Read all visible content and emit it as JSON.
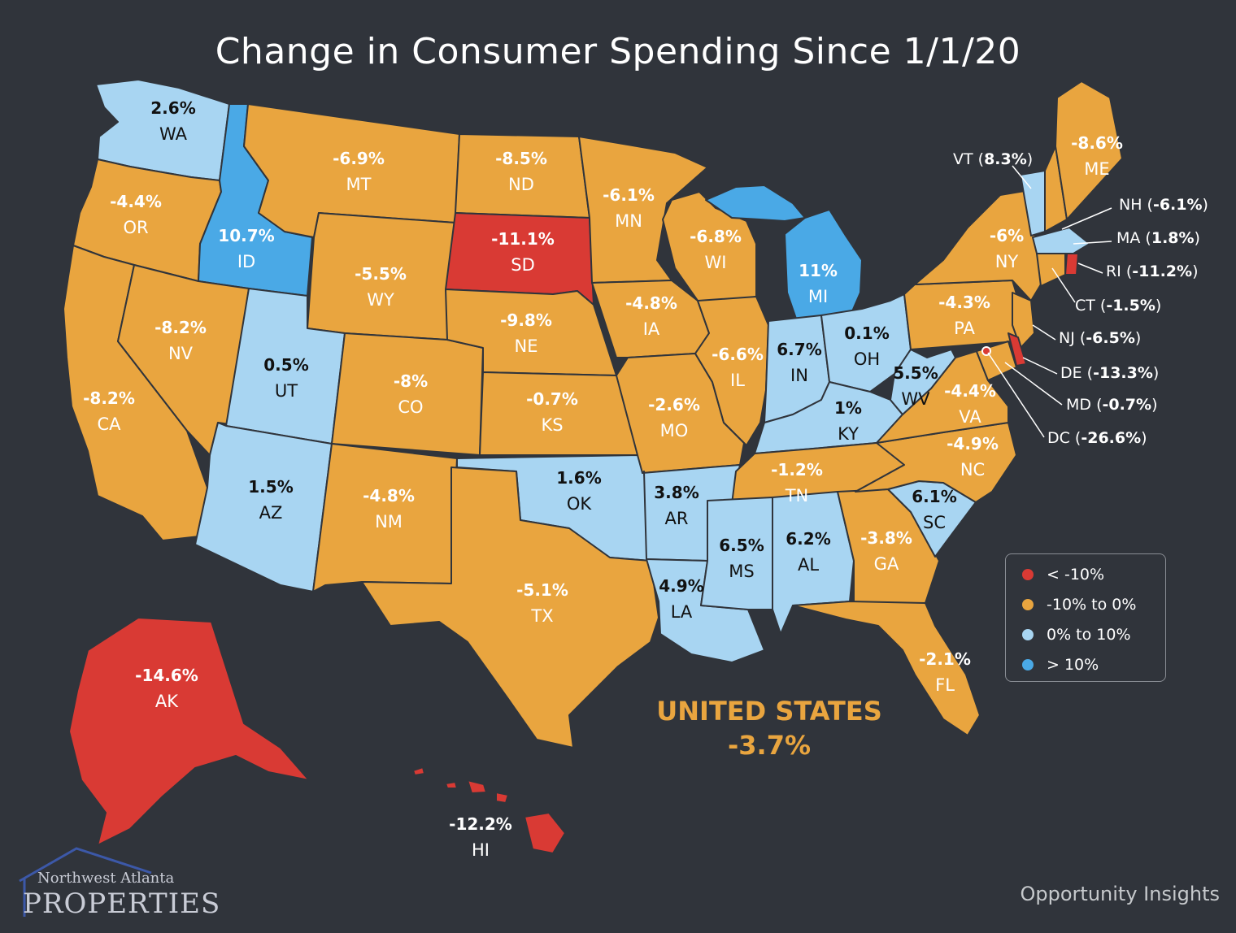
{
  "title": "Change in Consumer Spending Since 1/1/20",
  "legend": [
    {
      "label": "< -10%",
      "color": "#d93a34"
    },
    {
      "label": "-10% to 0%",
      "color": "#e9a53f"
    },
    {
      "label": "0% to 10%",
      "color": "#a8d5f2"
    },
    {
      "label": "> 10%",
      "color": "#4aa9e6"
    }
  ],
  "united_states": {
    "name": "UNITED STATES",
    "value": "-3.7%"
  },
  "source": "Opportunity Insights",
  "logo": {
    "top": "Northwest Atlanta",
    "bottom": "PROPERTIES"
  },
  "states": [
    {
      "abbr": "WA",
      "value": "2.6%"
    },
    {
      "abbr": "OR",
      "value": "-4.4%"
    },
    {
      "abbr": "CA",
      "value": "-8.2%"
    },
    {
      "abbr": "ID",
      "value": "10.7%"
    },
    {
      "abbr": "NV",
      "value": "-8.2%"
    },
    {
      "abbr": "MT",
      "value": "-6.9%"
    },
    {
      "abbr": "WY",
      "value": "-5.5%"
    },
    {
      "abbr": "UT",
      "value": "0.5%"
    },
    {
      "abbr": "AZ",
      "value": "1.5%"
    },
    {
      "abbr": "CO",
      "value": "-8%"
    },
    {
      "abbr": "NM",
      "value": "-4.8%"
    },
    {
      "abbr": "ND",
      "value": "-8.5%"
    },
    {
      "abbr": "SD",
      "value": "-11.1%"
    },
    {
      "abbr": "NE",
      "value": "-9.8%"
    },
    {
      "abbr": "KS",
      "value": "-0.7%"
    },
    {
      "abbr": "OK",
      "value": "1.6%"
    },
    {
      "abbr": "TX",
      "value": "-5.1%"
    },
    {
      "abbr": "MN",
      "value": "-6.1%"
    },
    {
      "abbr": "IA",
      "value": "-4.8%"
    },
    {
      "abbr": "MO",
      "value": "-2.6%"
    },
    {
      "abbr": "AR",
      "value": "3.8%"
    },
    {
      "abbr": "LA",
      "value": "4.9%"
    },
    {
      "abbr": "WI",
      "value": "-6.8%"
    },
    {
      "abbr": "IL",
      "value": "-6.6%"
    },
    {
      "abbr": "MI",
      "value": "11%"
    },
    {
      "abbr": "IN",
      "value": "6.7%"
    },
    {
      "abbr": "OH",
      "value": "0.1%"
    },
    {
      "abbr": "KY",
      "value": "1%"
    },
    {
      "abbr": "TN",
      "value": "-1.2%"
    },
    {
      "abbr": "MS",
      "value": "6.5%"
    },
    {
      "abbr": "AL",
      "value": "6.2%"
    },
    {
      "abbr": "GA",
      "value": "-3.8%"
    },
    {
      "abbr": "FL",
      "value": "-2.1%"
    },
    {
      "abbr": "SC",
      "value": "6.1%"
    },
    {
      "abbr": "NC",
      "value": "-4.9%"
    },
    {
      "abbr": "VA",
      "value": "-4.4%"
    },
    {
      "abbr": "WV",
      "value": "5.5%"
    },
    {
      "abbr": "PA",
      "value": "-4.3%"
    },
    {
      "abbr": "NY",
      "value": "-6%"
    },
    {
      "abbr": "ME",
      "value": "-8.6%"
    },
    {
      "abbr": "AK",
      "value": "-14.6%"
    },
    {
      "abbr": "HI",
      "value": "-12.2%"
    }
  ],
  "callouts": [
    {
      "abbr": "VT",
      "value": "8.3%"
    },
    {
      "abbr": "NH",
      "value": "-6.1%"
    },
    {
      "abbr": "MA",
      "value": "1.8%"
    },
    {
      "abbr": "RI",
      "value": "-11.2%"
    },
    {
      "abbr": "CT",
      "value": "-1.5%"
    },
    {
      "abbr": "NJ",
      "value": "-6.5%"
    },
    {
      "abbr": "DE",
      "value": "-13.3%"
    },
    {
      "abbr": "MD",
      "value": "-0.7%"
    },
    {
      "abbr": "DC",
      "value": "-26.6%"
    }
  ]
}
